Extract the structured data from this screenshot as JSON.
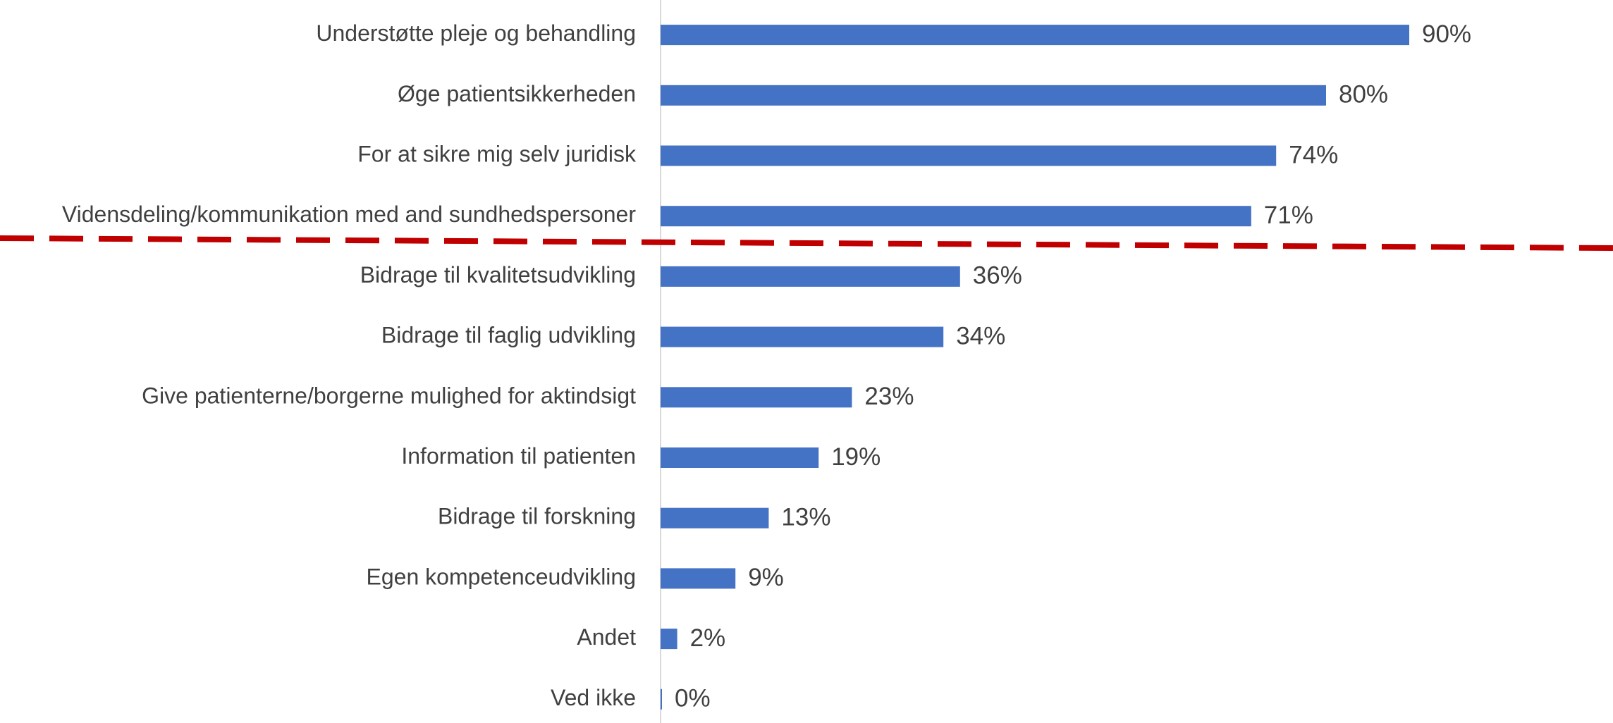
{
  "chart_data": {
    "type": "bar",
    "orientation": "horizontal",
    "categories": [
      "Understøtte pleje og behandling",
      "Øge patientsikkerheden",
      "For at sikre mig selv juridisk",
      "Vidensdeling/kommunikation med and sundhedspersoner",
      "Bidrage til kvalitetsudvikling",
      "Bidrage til faglig udvikling",
      "Give patienterne/borgerne mulighed for aktindsigt",
      "Information til patienten",
      "Bidrage til forskning",
      "Egen kompetenceudvikling",
      "Andet",
      "Ved ikke"
    ],
    "values": [
      90,
      80,
      74,
      71,
      36,
      34,
      23,
      19,
      13,
      9,
      2,
      0
    ],
    "value_labels": [
      "90%",
      "80%",
      "74%",
      "71%",
      "36%",
      "34%",
      "23%",
      "19%",
      "13%",
      "9%",
      "2%",
      "0%"
    ],
    "color": "#4472c4"
  }
}
